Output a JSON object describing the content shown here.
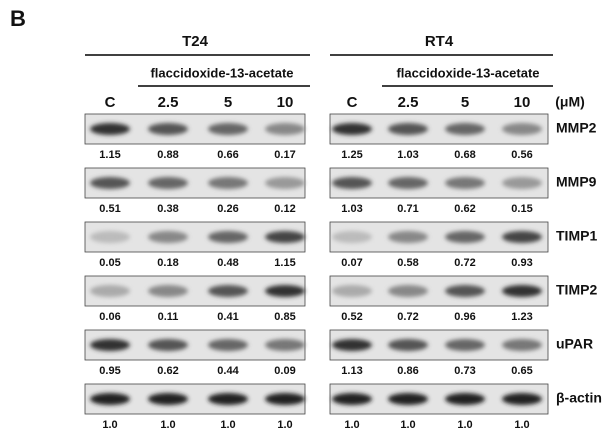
{
  "panel": "B",
  "unit": "(μM)",
  "proteins": [
    "MMP2",
    "MMP9",
    "TIMP1",
    "TIMP2",
    "uPAR",
    "β-actin"
  ],
  "groups": [
    {
      "name": "T24",
      "treatment": "flaccidoxide-13-acetate",
      "lanes": [
        "C",
        "2.5",
        "5",
        "10"
      ],
      "rows": [
        [
          "1.15",
          "0.88",
          "0.66",
          "0.17"
        ],
        [
          "0.51",
          "0.38",
          "0.26",
          "0.12"
        ],
        [
          "0.05",
          "0.18",
          "0.48",
          "1.15"
        ],
        [
          "0.06",
          "0.11",
          "0.41",
          "0.85"
        ],
        [
          "0.95",
          "0.62",
          "0.44",
          "0.09"
        ],
        [
          "1.0",
          "1.0",
          "1.0",
          "1.0"
        ]
      ]
    },
    {
      "name": "RT4",
      "treatment": "flaccidoxide-13-acetate",
      "lanes": [
        "C",
        "2.5",
        "5",
        "10"
      ],
      "rows": [
        [
          "1.25",
          "1.03",
          "0.68",
          "0.56"
        ],
        [
          "1.03",
          "0.71",
          "0.62",
          "0.15"
        ],
        [
          "0.07",
          "0.58",
          "0.72",
          "0.93"
        ],
        [
          "0.52",
          "0.72",
          "0.96",
          "1.23"
        ],
        [
          "1.13",
          "0.86",
          "0.73",
          "0.65"
        ],
        [
          "1.0",
          "1.0",
          "1.0",
          "1.0"
        ]
      ]
    }
  ]
}
